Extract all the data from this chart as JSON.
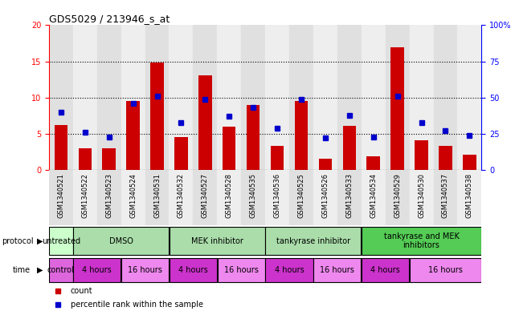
{
  "title": "GDS5029 / 213946_s_at",
  "samples": [
    "GSM1340521",
    "GSM1340522",
    "GSM1340523",
    "GSM1340524",
    "GSM1340531",
    "GSM1340532",
    "GSM1340527",
    "GSM1340528",
    "GSM1340535",
    "GSM1340536",
    "GSM1340525",
    "GSM1340526",
    "GSM1340533",
    "GSM1340534",
    "GSM1340529",
    "GSM1340530",
    "GSM1340537",
    "GSM1340538"
  ],
  "counts": [
    6.2,
    3.0,
    3.0,
    9.5,
    14.9,
    4.6,
    13.1,
    6.0,
    9.0,
    3.3,
    9.5,
    1.6,
    6.1,
    1.9,
    17.0,
    4.1,
    3.3,
    2.1
  ],
  "percentiles": [
    40,
    26,
    23,
    46,
    51,
    33,
    49,
    37,
    43,
    29,
    49,
    22,
    38,
    23,
    51,
    33,
    27,
    24
  ],
  "ylim_left": [
    0,
    20
  ],
  "ylim_right": [
    0,
    100
  ],
  "yticks_left": [
    0,
    5,
    10,
    15,
    20
  ],
  "yticks_right": [
    0,
    25,
    50,
    75,
    100
  ],
  "ytick_labels_left": [
    "0",
    "5",
    "10",
    "15",
    "20"
  ],
  "ytick_labels_right": [
    "0",
    "25",
    "50",
    "75",
    "100%"
  ],
  "bar_color": "#cc0000",
  "dot_color": "#0000cc",
  "bg_white": "#ffffff",
  "bg_light_gray": "#e8e8e8",
  "bg_dark_gray": "#d0d0d0",
  "protocol_groups": [
    {
      "label": "untreated",
      "start": 0,
      "end": 1,
      "color": "#ccffcc"
    },
    {
      "label": "DMSO",
      "start": 1,
      "end": 5,
      "color": "#aaddaa"
    },
    {
      "label": "MEK inhibitor",
      "start": 5,
      "end": 9,
      "color": "#aaddaa"
    },
    {
      "label": "tankyrase inhibitor",
      "start": 9,
      "end": 13,
      "color": "#aaddaa"
    },
    {
      "label": "tankyrase and MEK\ninhibitors",
      "start": 13,
      "end": 18,
      "color": "#55cc55"
    }
  ],
  "time_groups": [
    {
      "label": "control",
      "start": 0,
      "end": 1,
      "color": "#dd66dd"
    },
    {
      "label": "4 hours",
      "start": 1,
      "end": 3,
      "color": "#cc33cc"
    },
    {
      "label": "16 hours",
      "start": 3,
      "end": 5,
      "color": "#ee88ee"
    },
    {
      "label": "4 hours",
      "start": 5,
      "end": 7,
      "color": "#cc33cc"
    },
    {
      "label": "16 hours",
      "start": 7,
      "end": 9,
      "color": "#ee88ee"
    },
    {
      "label": "4 hours",
      "start": 9,
      "end": 11,
      "color": "#cc33cc"
    },
    {
      "label": "16 hours",
      "start": 11,
      "end": 13,
      "color": "#ee88ee"
    },
    {
      "label": "4 hours",
      "start": 13,
      "end": 15,
      "color": "#cc33cc"
    },
    {
      "label": "16 hours",
      "start": 15,
      "end": 18,
      "color": "#ee88ee"
    }
  ],
  "col_bg_even": "#e0e0e0",
  "col_bg_odd": "#eeeeee"
}
